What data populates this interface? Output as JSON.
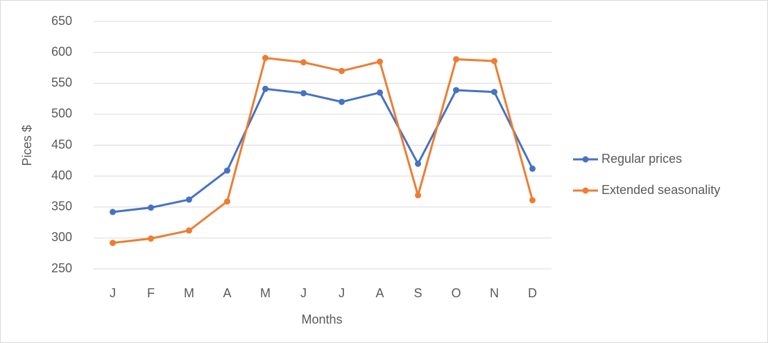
{
  "chart_data": {
    "type": "line",
    "categories": [
      "J",
      "F",
      "M",
      "A",
      "M",
      "J",
      "J",
      "A",
      "S",
      "O",
      "N",
      "D"
    ],
    "series": [
      {
        "name": "Regular prices",
        "color": "#4472c4",
        "values": [
          342,
          349,
          362,
          409,
          541,
          534,
          520,
          535,
          420,
          539,
          536,
          412
        ]
      },
      {
        "name": "Extended seasonality",
        "color": "#ed7d31",
        "values": [
          292,
          299,
          312,
          359,
          591,
          584,
          570,
          585,
          369,
          589,
          586,
          361
        ]
      }
    ],
    "x_label": "Months",
    "y_label": "Pices $",
    "ylim": [
      250,
      650
    ],
    "yticks": [
      250,
      300,
      350,
      400,
      450,
      500,
      550,
      600,
      650
    ],
    "grid": true,
    "legend": "right"
  }
}
